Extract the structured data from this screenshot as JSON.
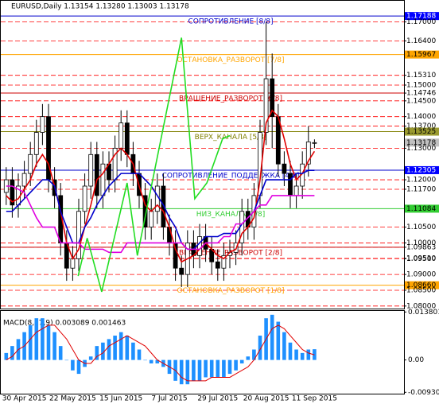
{
  "chart_data": [
    {
      "type": "candlestick",
      "title": "EURUSD,Daily  1.13154 1.13280 1.13003 1.13178",
      "categories": [
        null,
        null,
        null,
        "30 Apr 2015",
        null,
        null,
        null,
        null,
        null,
        null,
        null,
        "22 May 2015",
        null,
        null,
        null,
        null,
        null,
        null,
        null,
        "15 Jun 2015",
        null,
        null,
        null,
        null,
        null,
        null,
        null,
        "7 Jul 2015",
        null,
        null,
        null,
        null,
        null,
        null,
        null,
        "29 Jul 2015",
        null,
        null,
        null,
        null,
        null,
        null,
        null,
        "20 Aug 2015",
        null,
        null,
        null,
        null,
        null,
        null,
        null,
        "11 Sep 2015"
      ],
      "ohlc": [
        [
          1.116,
          1.124,
          1.112,
          1.12
        ],
        [
          1.12,
          1.124,
          1.108,
          1.112
        ],
        [
          1.112,
          1.122,
          1.108,
          1.118
        ],
        [
          1.118,
          1.126,
          1.114,
          1.122
        ],
        [
          1.122,
          1.132,
          1.118,
          1.128
        ],
        [
          1.128,
          1.139,
          1.124,
          1.135
        ],
        [
          1.135,
          1.144,
          1.131,
          1.14
        ],
        [
          1.14,
          1.144,
          1.116,
          1.12
        ],
        [
          1.12,
          1.124,
          1.111,
          1.115
        ],
        [
          1.115,
          1.119,
          1.096,
          1.1
        ],
        [
          1.1,
          1.104,
          1.088,
          1.092
        ],
        [
          1.092,
          1.099,
          1.088,
          1.095
        ],
        [
          1.095,
          1.114,
          1.091,
          1.11
        ],
        [
          1.11,
          1.122,
          1.106,
          1.118
        ],
        [
          1.118,
          1.132,
          1.114,
          1.128
        ],
        [
          1.128,
          1.132,
          1.111,
          1.115
        ],
        [
          1.115,
          1.129,
          1.111,
          1.125
        ],
        [
          1.125,
          1.129,
          1.116,
          1.12
        ],
        [
          1.12,
          1.134,
          1.116,
          1.13
        ],
        [
          1.13,
          1.142,
          1.126,
          1.138
        ],
        [
          1.138,
          1.142,
          1.124,
          1.128
        ],
        [
          1.128,
          1.132,
          1.118,
          1.122
        ],
        [
          1.122,
          1.126,
          1.111,
          1.115
        ],
        [
          1.115,
          1.119,
          1.101,
          1.105
        ],
        [
          1.105,
          1.114,
          1.101,
          1.11
        ],
        [
          1.11,
          1.122,
          1.106,
          1.118
        ],
        [
          1.118,
          1.122,
          1.101,
          1.105
        ],
        [
          1.105,
          1.109,
          1.096,
          1.1
        ],
        [
          1.1,
          1.104,
          1.088,
          1.092
        ],
        [
          1.092,
          1.096,
          1.086,
          1.09
        ],
        [
          1.09,
          1.104,
          1.086,
          1.1
        ],
        [
          1.1,
          1.104,
          1.092,
          1.096
        ],
        [
          1.096,
          1.106,
          1.092,
          1.102
        ],
        [
          1.102,
          1.106,
          1.094,
          1.098
        ],
        [
          1.098,
          1.102,
          1.09,
          1.094
        ],
        [
          1.094,
          1.098,
          1.088,
          1.092
        ],
        [
          1.092,
          1.1,
          1.088,
          1.096
        ],
        [
          1.096,
          1.101,
          1.092,
          1.097
        ],
        [
          1.097,
          1.104,
          1.093,
          1.1
        ],
        [
          1.1,
          1.114,
          1.096,
          1.11
        ],
        [
          1.11,
          1.114,
          1.101,
          1.105
        ],
        [
          1.105,
          1.119,
          1.101,
          1.115
        ],
        [
          1.115,
          1.139,
          1.111,
          1.135
        ],
        [
          1.135,
          1.17,
          1.131,
          1.152
        ],
        [
          1.152,
          1.16,
          1.13,
          1.14
        ],
        [
          1.14,
          1.144,
          1.121,
          1.125
        ],
        [
          1.125,
          1.129,
          1.118,
          1.122
        ],
        [
          1.122,
          1.126,
          1.111,
          1.115
        ],
        [
          1.115,
          1.122,
          1.111,
          1.118
        ],
        [
          1.118,
          1.129,
          1.114,
          1.125
        ],
        [
          1.125,
          1.137,
          1.121,
          1.132
        ],
        [
          1.13154,
          1.1328,
          1.13003,
          1.13178
        ]
      ],
      "up_color": "#ffffff",
      "down_color": "#000000",
      "lines": [
        {
          "color": "#e00000",
          "values": [
            1.115,
            1.113,
            1.114,
            1.117,
            1.12,
            1.125,
            1.128,
            1.125,
            1.118,
            1.11,
            1.1,
            1.095,
            1.098,
            1.105,
            1.112,
            1.12,
            1.122,
            1.125,
            1.128,
            1.13,
            1.128,
            1.125,
            1.118,
            1.112,
            1.11,
            1.112,
            1.11,
            1.105,
            1.098,
            1.094,
            1.095,
            1.096,
            1.098,
            1.1,
            1.098,
            1.096,
            1.095,
            1.097,
            1.098,
            1.103,
            1.105,
            1.108,
            1.12,
            1.138,
            1.142,
            1.14,
            1.133,
            1.125,
            1.12,
            1.122,
            1.126,
            1.129
          ]
        },
        {
          "color": "#0000cc",
          "values": [
            1.11,
            1.11,
            1.112,
            1.114,
            1.116,
            1.118,
            1.12,
            1.12,
            1.118,
            1.11,
            1.105,
            1.1,
            1.1,
            1.105,
            1.108,
            1.112,
            1.115,
            1.118,
            1.12,
            1.122,
            1.122,
            1.122,
            1.122,
            1.12,
            1.118,
            1.115,
            1.112,
            1.108,
            1.105,
            1.1,
            1.098,
            1.098,
            1.1,
            1.102,
            1.102,
            1.102,
            1.103,
            1.103,
            1.103,
            1.106,
            1.108,
            1.11,
            1.115,
            1.12,
            1.12,
            1.12,
            1.12,
            1.12,
            1.122,
            1.122,
            1.123,
            1.123
          ]
        },
        {
          "color": "#e000e0",
          "values": [
            1.118,
            1.118,
            1.117,
            1.116,
            1.112,
            1.108,
            1.105,
            1.105,
            1.105,
            1.1,
            1.1,
            1.1,
            1.1,
            1.098,
            1.098,
            1.098,
            1.098,
            1.097,
            1.097,
            1.097,
            1.1,
            1.1,
            1.1,
            1.1,
            1.1,
            1.1,
            1.1,
            1.1,
            1.1,
            1.1,
            1.098,
            1.098,
            1.098,
            1.1,
            1.1,
            1.1,
            1.102,
            1.102,
            1.106,
            1.106,
            1.108,
            1.11,
            1.112,
            1.112,
            1.115,
            1.115,
            1.115,
            1.115,
            1.115,
            1.115,
            1.115,
            1.115
          ]
        },
        {
          "color": "#22dd22",
          "x": [
            11.9,
            13.4,
            15.8,
            20,
            21.7,
            29,
            31.2,
            33.2,
            35.8,
            37
          ],
          "values": [
            1.0895,
            1.1015,
            1.0845,
            1.119,
            1.096,
            1.165,
            1.114,
            1.119,
            1.133,
            1.134
          ]
        }
      ],
      "levels": [
        {
          "text": "СОПРОТИВЛЕНИЕ [8/8]",
          "value": 1.17188,
          "color": "#0000cc"
        },
        {
          "text": "ОСТАНОВКА_РАЗВОРОТ [7/8]",
          "value": 1.15967,
          "color": "#ffa500"
        },
        {
          "text": "ВРАЩЕНИЕ_РАЗВОРОТ [6/8]",
          "value": 1.14746,
          "color": "#cc0000"
        },
        {
          "text": "ВЕРХ_КАНАЛА [5/8]",
          "value": 1.13525,
          "color": "#808000"
        },
        {
          "text": "СОПРОТИВЛЕНИЕ_ПОДДЕРЖКА [4/8]",
          "value": 1.12305,
          "color": "#0000cc"
        },
        {
          "text": "НИЗ_КАНАЛА [3/8]",
          "value": 1.11084,
          "color": "#32cd32"
        },
        {
          "text": "ВРАЩЕНИЕ_РАЗВОРОТ [2/8]",
          "value": 1.09863,
          "color": "#cc0000"
        },
        {
          "text": "ОСТАНОВКА_РАЗВОРОТ [1/8]",
          "value": 1.0866,
          "color": "#ffa500"
        }
      ],
      "ylim": [
        1.0792,
        1.1767
      ],
      "yticks": [
        {
          "value": 1.17188,
          "label": "1.17188",
          "color": "#0000ff"
        },
        {
          "value": 1.17,
          "label": "1.17000"
        },
        {
          "value": 1.164,
          "label": "1.16400"
        },
        {
          "value": 1.15967,
          "label": "1.15967",
          "color": "#ffa500"
        },
        {
          "value": 1.1531,
          "label": "1.15310"
        },
        {
          "value": 1.15,
          "label": "1.15000"
        },
        {
          "value": 1.14746,
          "label": "1.14746"
        },
        {
          "value": 1.145,
          "label": "1.14500"
        },
        {
          "value": 1.14,
          "label": "1.14000"
        },
        {
          "value": 1.137,
          "label": "1.13700"
        },
        {
          "value": 1.13525,
          "label": "1.13525",
          "color": "#9a9a30"
        },
        {
          "value": 1.13178,
          "label": "1.13178",
          "color": "#c0c0c0"
        },
        {
          "value": 1.13,
          "label": "1.13000"
        },
        {
          "value": 1.12305,
          "label": "1.12305",
          "color": "#0000ff"
        },
        {
          "value": 1.12,
          "label": "1.12000"
        },
        {
          "value": 1.117,
          "label": "1.11700"
        },
        {
          "value": 1.11084,
          "label": "1.11084",
          "color": "#32cd32"
        },
        {
          "value": 1.105,
          "label": "1.10500"
        },
        {
          "value": 1.1,
          "label": "1.10000"
        },
        {
          "value": 1.09863,
          "label": "1.09863"
        },
        {
          "value": 1.0951,
          "label": "1.09510"
        },
        {
          "value": 1.095,
          "label": "1.09500"
        },
        {
          "value": 1.09,
          "label": "1.09000"
        },
        {
          "value": 1.0866,
          "label": "1.08660",
          "color": "#ffa500"
        },
        {
          "value": 1.085,
          "label": "1.08500"
        },
        {
          "value": 1.08,
          "label": "1.08000"
        }
      ]
    },
    {
      "type": "macd",
      "title": "MACD(8,17,9) 0.003089 0.001463",
      "color": "#1e90ff",
      "signal_color": "#e00000",
      "values": [
        0.002,
        0.004,
        0.006,
        0.008,
        0.01,
        0.012,
        0.012,
        0.01,
        0.008,
        0.004,
        0,
        -0.003,
        -0.004,
        -0.002,
        0.001,
        0.004,
        0.005,
        0.006,
        0.007,
        0.008,
        0.007,
        0.005,
        0.003,
        0,
        -0.001,
        -0.001,
        -0.002,
        -0.004,
        -0.006,
        -0.007,
        -0.007,
        -0.006,
        -0.006,
        -0.005,
        -0.005,
        -0.005,
        -0.005,
        -0.004,
        -0.003,
        -0.001,
        0.001,
        0.003,
        0.007,
        0.012,
        0.013,
        0.011,
        0.008,
        0.005,
        0.003,
        0.002,
        0.003,
        0.003089
      ],
      "signal": [
        0,
        0.001,
        0.003,
        0.004,
        0.006,
        0.008,
        0.009,
        0.01,
        0.01,
        0.008,
        0.006,
        0.003,
        0,
        -0.001,
        -0.001,
        0.001,
        0.002,
        0.004,
        0.005,
        0.006,
        0.007,
        0.006,
        0.005,
        0.004,
        0.002,
        0,
        -0.001,
        -0.002,
        -0.003,
        -0.005,
        -0.006,
        -0.006,
        -0.006,
        -0.006,
        -0.005,
        -0.005,
        -0.005,
        -0.005,
        -0.004,
        -0.003,
        -0.002,
        0,
        0.003,
        0.006,
        0.009,
        0.01,
        0.009,
        0.007,
        0.005,
        0.003,
        0.002,
        0.001463
      ],
      "ylim": [
        -0.0097,
        0.0141
      ],
      "yticks": [
        0.013801,
        {
          "value": 0,
          "label": "0.00"
        },
        -0.009304
      ]
    }
  ]
}
